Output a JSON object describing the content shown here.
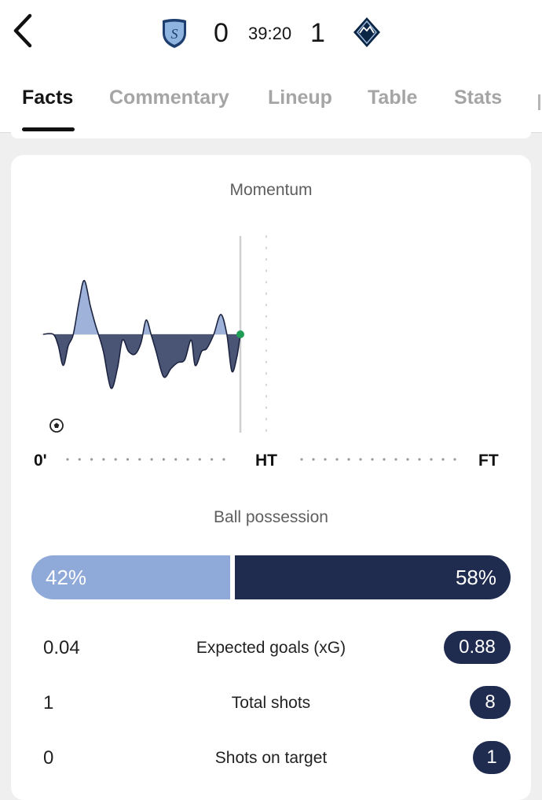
{
  "match": {
    "home_team_logo_icon": "sporting-kc-crest-icon",
    "away_team_logo_icon": "vancouver-whitecaps-crest-icon",
    "home_score": "0",
    "away_score": "1",
    "clock": "39:20"
  },
  "tabs": [
    {
      "label": "Facts",
      "active": true
    },
    {
      "label": "Commentary",
      "active": false
    },
    {
      "label": "Lineup",
      "active": false
    },
    {
      "label": "Table",
      "active": false
    },
    {
      "label": "Stats",
      "active": false
    }
  ],
  "momentum": {
    "title": "Momentum",
    "timeline_labels": {
      "start": "0'",
      "half": "HT",
      "end": "FT"
    },
    "current_minute": 39.3,
    "home_color": "#9fb3da",
    "away_color": "#4a5576",
    "accent_color": "#1f9d57",
    "goal_event_icon": "football-icon",
    "series": [
      {
        "minute": 0,
        "value": 0
      },
      {
        "minute": 2,
        "value": 0
      },
      {
        "minute": 3,
        "value": -0.2
      },
      {
        "minute": 4,
        "value": -0.55
      },
      {
        "minute": 5,
        "value": -0.2
      },
      {
        "minute": 6,
        "value": 0
      },
      {
        "minute": 7.2,
        "value": 0.6
      },
      {
        "minute": 8.2,
        "value": 0.95
      },
      {
        "minute": 9.4,
        "value": 0.5
      },
      {
        "minute": 10.3,
        "value": 0.2
      },
      {
        "minute": 11,
        "value": 0
      },
      {
        "minute": 12,
        "value": -0.3
      },
      {
        "minute": 13.5,
        "value": -0.95
      },
      {
        "minute": 14.8,
        "value": -0.6
      },
      {
        "minute": 15.8,
        "value": -0.1
      },
      {
        "minute": 17,
        "value": -0.3
      },
      {
        "minute": 18.3,
        "value": -0.35
      },
      {
        "minute": 19.5,
        "value": -0.15
      },
      {
        "minute": 20.5,
        "value": 0.25
      },
      {
        "minute": 21.5,
        "value": 0
      },
      {
        "minute": 22.5,
        "value": -0.3
      },
      {
        "minute": 24,
        "value": -0.75
      },
      {
        "minute": 25.5,
        "value": -0.6
      },
      {
        "minute": 26.8,
        "value": -0.5
      },
      {
        "minute": 28.2,
        "value": -0.45
      },
      {
        "minute": 29.5,
        "value": -0.1
      },
      {
        "minute": 30.3,
        "value": -0.55
      },
      {
        "minute": 31.6,
        "value": -0.3
      },
      {
        "minute": 32.6,
        "value": -0.25
      },
      {
        "minute": 34,
        "value": 0
      },
      {
        "minute": 35.4,
        "value": 0.35
      },
      {
        "minute": 36.6,
        "value": 0
      },
      {
        "minute": 37.6,
        "value": -0.65
      },
      {
        "minute": 38.6,
        "value": -0.4
      },
      {
        "minute": 39.3,
        "value": 0
      }
    ]
  },
  "possession": {
    "title": "Ball possession",
    "home_label": "42%",
    "away_label": "58%",
    "home_fraction": 0.42,
    "home_color": "#8fa9d8",
    "away_color": "#1f2b4f"
  },
  "stats": [
    {
      "label": "Expected goals (xG)",
      "home": "0.04",
      "away": "0.88"
    },
    {
      "label": "Total shots",
      "home": "1",
      "away": "8"
    },
    {
      "label": "Shots on target",
      "home": "0",
      "away": "1"
    }
  ]
}
